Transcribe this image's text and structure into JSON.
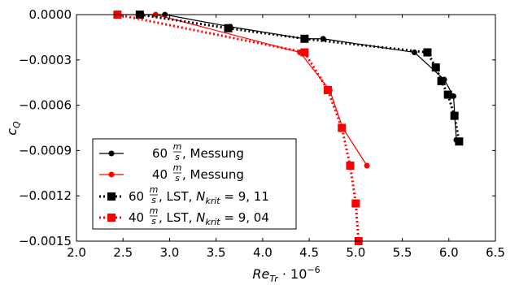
{
  "chart_data": {
    "type": "line",
    "title": "",
    "xlabel": "Re_Tr · 10^-6",
    "ylabel": "c_Q",
    "xlim": [
      2.0,
      6.5
    ],
    "ylim": [
      -0.0015,
      0.0
    ],
    "x_ticks": [
      2.0,
      2.5,
      3.0,
      3.5,
      4.0,
      4.5,
      5.0,
      5.5,
      6.0,
      6.5
    ],
    "x_tick_labels": [
      "2.0",
      "2.5",
      "3.0",
      "3.5",
      "4.0",
      "4.5",
      "5.0",
      "5.5",
      "6.0",
      "6.5"
    ],
    "y_ticks": [
      0.0,
      -0.0003,
      -0.0006,
      -0.0009,
      -0.0012,
      -0.0015
    ],
    "y_tick_labels": [
      "0.0000",
      "−0.0003",
      "−0.0006",
      "−0.0009",
      "−0.0012",
      "−0.0015"
    ],
    "grid": false,
    "legend_position": "bottom-left",
    "series": [
      {
        "name": "60 m/s, Messung",
        "color": "#000000",
        "marker": "circle",
        "line": "solid",
        "x": [
          2.7,
          2.95,
          3.65,
          4.45,
          4.65,
          5.63,
          5.95,
          6.05,
          6.08
        ],
        "y": [
          0.0,
          0.0,
          -8e-05,
          -0.00016,
          -0.00016,
          -0.00025,
          -0.00043,
          -0.00054,
          -0.00083
        ]
      },
      {
        "name": "40 m/s, Messung",
        "color": "#ff0000",
        "marker": "circle",
        "line": "solid",
        "x": [
          2.43,
          2.85,
          4.4,
          4.72,
          4.86,
          5.12
        ],
        "y": [
          0.0,
          0.0,
          -0.00025,
          -0.0005,
          -0.00075,
          -0.001
        ]
      },
      {
        "name": "60 m/s, LST, N_krit = 9,11",
        "color": "#000000",
        "marker": "square",
        "line": "dotted",
        "x": [
          2.68,
          3.63,
          4.45,
          5.77,
          5.86,
          5.92,
          5.99,
          6.06,
          6.11
        ],
        "y": [
          0.0,
          -9e-05,
          -0.00016,
          -0.00025,
          -0.00035,
          -0.00044,
          -0.00053,
          -0.00067,
          -0.00084
        ]
      },
      {
        "name": "40 m/s, LST, N_krit = 9,04",
        "color": "#ff0000",
        "marker": "square",
        "line": "dotted",
        "x": [
          2.44,
          4.45,
          4.7,
          4.85,
          4.94,
          5.0,
          5.03
        ],
        "y": [
          0.0,
          -0.00025,
          -0.0005,
          -0.00075,
          -0.001,
          -0.00125,
          -0.0015
        ]
      }
    ]
  },
  "legend": {
    "items": [
      {
        "speed": "60",
        "rest": ", Messung",
        "nkrit": ""
      },
      {
        "speed": "40",
        "rest": ", Messung",
        "nkrit": ""
      },
      {
        "speed": "60",
        "rest": ", LST, ",
        "nkrit": " = 9, 11"
      },
      {
        "speed": "40",
        "rest": ", LST, ",
        "nkrit": " = 9, 04"
      }
    ],
    "unit_num": "m",
    "unit_den": "s",
    "nkrit_symbol": "N",
    "nkrit_sub": "krit"
  },
  "axis_titles": {
    "x_main": "Re",
    "x_sub": "Tr",
    "x_suffix": " · 10",
    "x_exp": "−6",
    "y_main": "c",
    "y_sub": "Q"
  }
}
